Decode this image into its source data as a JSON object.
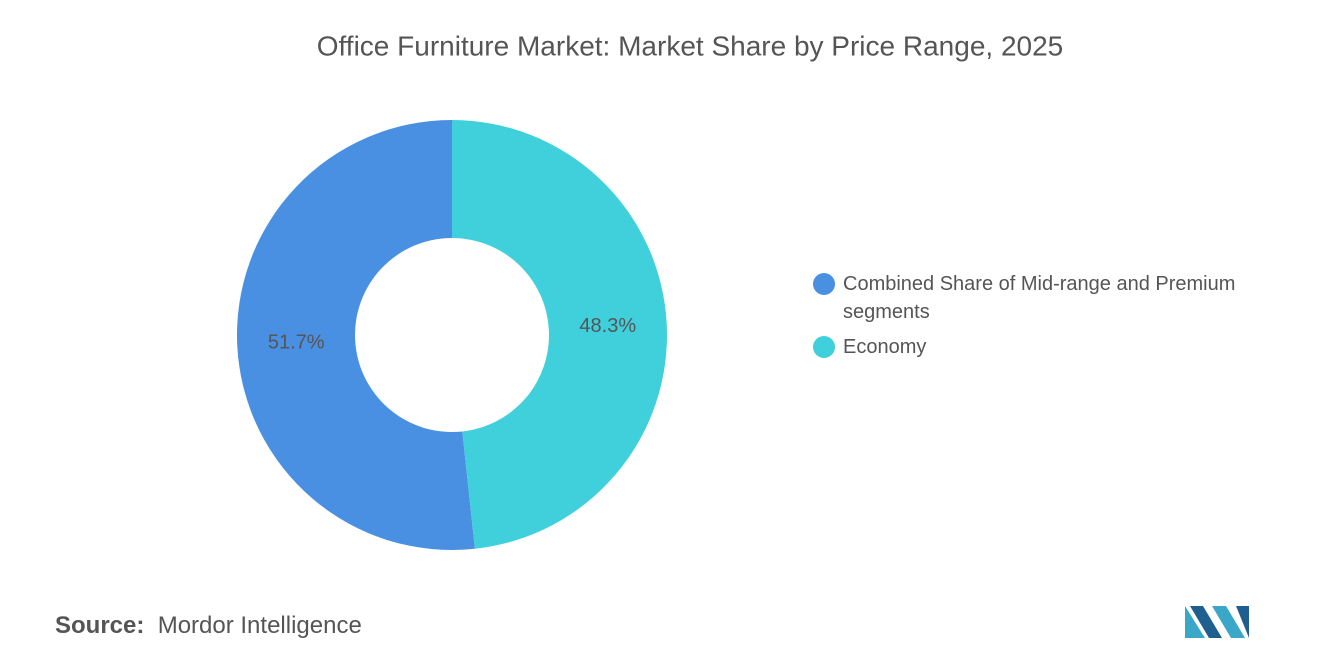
{
  "chart_data": {
    "type": "donut",
    "title": "Office Furniture Market: Market Share by Price Range, 2025",
    "categories": [
      "Combined Share of Mid-range and Premium segments",
      "Economy"
    ],
    "values": [
      51.7,
      48.3
    ],
    "value_labels": [
      "51.7%",
      "48.3%"
    ],
    "colors": [
      "#4a90e2",
      "#40d0dc"
    ],
    "source_label": "Source:",
    "source": "Mordor Intelligence"
  }
}
